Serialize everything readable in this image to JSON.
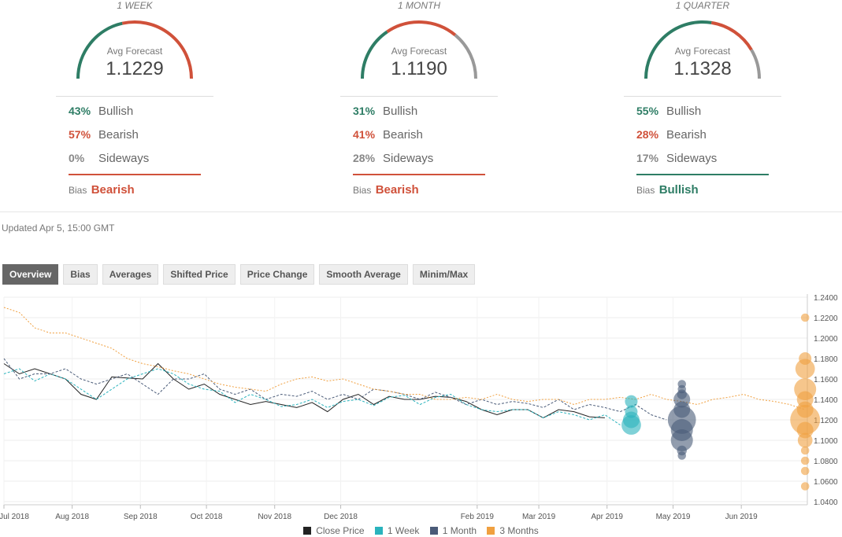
{
  "panels": [
    {
      "title": "1 WEEK",
      "avg_label": "Avg Forecast",
      "avg_value": "1.1229",
      "gauge": {
        "bullish": 0.43,
        "bearish": 0.57,
        "sideways": 0.0
      },
      "rows": [
        {
          "pct": "43%",
          "label": "Bullish",
          "color": "#2e7d65"
        },
        {
          "pct": "57%",
          "label": "Bearish",
          "color": "#d0513a"
        },
        {
          "pct": "0%",
          "label": "Sideways",
          "color": "#888888"
        }
      ],
      "bias_label": "Bias",
      "bias_value": "Bearish",
      "bias_color": "#d0513a"
    },
    {
      "title": "1 MONTH",
      "avg_label": "Avg Forecast",
      "avg_value": "1.1190",
      "gauge": {
        "bullish": 0.31,
        "bearish": 0.41,
        "sideways": 0.28
      },
      "rows": [
        {
          "pct": "31%",
          "label": "Bullish",
          "color": "#2e7d65"
        },
        {
          "pct": "41%",
          "label": "Bearish",
          "color": "#d0513a"
        },
        {
          "pct": "28%",
          "label": "Sideways",
          "color": "#888888"
        }
      ],
      "bias_label": "Bias",
      "bias_value": "Bearish",
      "bias_color": "#d0513a"
    },
    {
      "title": "1 QUARTER",
      "avg_label": "Avg Forecast",
      "avg_value": "1.1328",
      "gauge": {
        "bullish": 0.55,
        "bearish": 0.28,
        "sideways": 0.17
      },
      "rows": [
        {
          "pct": "55%",
          "label": "Bullish",
          "color": "#2e7d65"
        },
        {
          "pct": "28%",
          "label": "Bearish",
          "color": "#d0513a"
        },
        {
          "pct": "17%",
          "label": "Sideways",
          "color": "#888888"
        }
      ],
      "bias_label": "Bias",
      "bias_value": "Bullish",
      "bias_color": "#2e7d65"
    }
  ],
  "updated": "Updated Apr 5, 15:00 GMT",
  "tabs": [
    "Overview",
    "Bias",
    "Averages",
    "Shifted Price",
    "Price Change",
    "Smooth Average",
    "Minim/Max"
  ],
  "active_tab": "Overview",
  "colors": {
    "bullish": "#2e7d65",
    "bearish": "#d0513a",
    "sideways": "#999999",
    "close": "#222222",
    "week": "#2ab3bd",
    "month": "#4a5b78",
    "quarter": "#f0a040"
  },
  "chart_data": {
    "type": "line",
    "x_tick_labels": [
      "Jul 2018",
      "Aug 2018",
      "Sep 2018",
      "Oct 2018",
      "Nov 2018",
      "Dec 2018",
      "Feb 2019",
      "Mar 2019",
      "Apr 2019",
      "May 2019",
      "Jun 2019"
    ],
    "y_tick_labels": [
      "1.2400",
      "1.2200",
      "1.2000",
      "1.1800",
      "1.1600",
      "1.1400",
      "1.1200",
      "1.1000",
      "1.0800",
      "1.0600",
      "1.0400"
    ],
    "ylim": [
      1.04,
      1.24
    ],
    "grid": true,
    "legend": {
      "position": "bottom",
      "items": [
        {
          "name": "Close Price",
          "color": "#222222"
        },
        {
          "name": "1 Week",
          "color": "#2ab3bd"
        },
        {
          "name": "1 Month",
          "color": "#4a5b78"
        },
        {
          "name": "3 Months",
          "color": "#f0a040"
        }
      ]
    },
    "series": [
      {
        "name": "Close Price",
        "style": "solid",
        "color": "#222222",
        "x": [
          "2018-07-01",
          "2018-07-08",
          "2018-07-15",
          "2018-07-22",
          "2018-07-29",
          "2018-08-05",
          "2018-08-12",
          "2018-08-19",
          "2018-08-26",
          "2018-09-02",
          "2018-09-09",
          "2018-09-16",
          "2018-09-23",
          "2018-09-30",
          "2018-10-07",
          "2018-10-14",
          "2018-10-21",
          "2018-10-28",
          "2018-11-04",
          "2018-11-11",
          "2018-11-18",
          "2018-11-25",
          "2018-12-02",
          "2018-12-09",
          "2018-12-16",
          "2018-12-23",
          "2018-12-30",
          "2019-01-06",
          "2019-01-13",
          "2019-01-20",
          "2019-01-27",
          "2019-02-03",
          "2019-02-10",
          "2019-02-17",
          "2019-02-24",
          "2019-03-03",
          "2019-03-10",
          "2019-03-17",
          "2019-03-24",
          "2019-03-31"
        ],
        "y": [
          1.175,
          1.165,
          1.17,
          1.165,
          1.16,
          1.145,
          1.14,
          1.162,
          1.161,
          1.16,
          1.175,
          1.16,
          1.15,
          1.155,
          1.145,
          1.14,
          1.135,
          1.138,
          1.135,
          1.132,
          1.137,
          1.128,
          1.14,
          1.145,
          1.135,
          1.143,
          1.14,
          1.14,
          1.143,
          1.142,
          1.138,
          1.13,
          1.125,
          1.13,
          1.13,
          1.122,
          1.13,
          1.128,
          1.123,
          1.122
        ]
      },
      {
        "name": "1 Week",
        "style": "dashed",
        "color": "#2ab3bd",
        "x": [
          "2018-07-01",
          "2018-07-08",
          "2018-07-15",
          "2018-07-22",
          "2018-07-29",
          "2018-08-05",
          "2018-08-12",
          "2018-08-19",
          "2018-08-26",
          "2018-09-02",
          "2018-09-09",
          "2018-09-16",
          "2018-09-23",
          "2018-09-30",
          "2018-10-07",
          "2018-10-14",
          "2018-10-21",
          "2018-10-28",
          "2018-11-04",
          "2018-11-11",
          "2018-11-18",
          "2018-11-25",
          "2018-12-02",
          "2018-12-09",
          "2018-12-16",
          "2018-12-23",
          "2018-12-30",
          "2019-01-06",
          "2019-01-13",
          "2019-01-20",
          "2019-01-27",
          "2019-02-03",
          "2019-02-10",
          "2019-02-17",
          "2019-02-24",
          "2019-03-03",
          "2019-03-10",
          "2019-03-17",
          "2019-03-24",
          "2019-03-31",
          "2019-04-07"
        ],
        "y": [
          1.165,
          1.17,
          1.158,
          1.165,
          1.16,
          1.15,
          1.14,
          1.15,
          1.16,
          1.165,
          1.17,
          1.165,
          1.155,
          1.15,
          1.148,
          1.137,
          1.145,
          1.14,
          1.133,
          1.135,
          1.14,
          1.132,
          1.138,
          1.14,
          1.134,
          1.142,
          1.144,
          1.135,
          1.142,
          1.145,
          1.135,
          1.13,
          1.128,
          1.13,
          1.13,
          1.122,
          1.128,
          1.125,
          1.12,
          1.125,
          1.115
        ]
      },
      {
        "name": "1 Month",
        "style": "dashed",
        "color": "#4a5b78",
        "x": [
          "2018-07-01",
          "2018-07-08",
          "2018-07-15",
          "2018-07-22",
          "2018-07-29",
          "2018-08-05",
          "2018-08-12",
          "2018-08-19",
          "2018-08-26",
          "2018-09-02",
          "2018-09-09",
          "2018-09-16",
          "2018-09-23",
          "2018-09-30",
          "2018-10-07",
          "2018-10-14",
          "2018-10-21",
          "2018-10-28",
          "2018-11-04",
          "2018-11-11",
          "2018-11-18",
          "2018-11-25",
          "2018-12-02",
          "2018-12-09",
          "2018-12-16",
          "2018-12-23",
          "2018-12-30",
          "2019-01-06",
          "2019-01-13",
          "2019-01-20",
          "2019-01-27",
          "2019-02-03",
          "2019-02-10",
          "2019-02-17",
          "2019-02-24",
          "2019-03-03",
          "2019-03-10",
          "2019-03-17",
          "2019-03-24",
          "2019-03-31",
          "2019-04-07",
          "2019-04-14",
          "2019-04-21",
          "2019-04-28"
        ],
        "y": [
          1.18,
          1.16,
          1.165,
          1.165,
          1.17,
          1.16,
          1.155,
          1.16,
          1.165,
          1.155,
          1.145,
          1.16,
          1.16,
          1.165,
          1.15,
          1.145,
          1.15,
          1.14,
          1.145,
          1.143,
          1.148,
          1.14,
          1.145,
          1.14,
          1.15,
          1.148,
          1.145,
          1.14,
          1.147,
          1.142,
          1.135,
          1.14,
          1.135,
          1.138,
          1.136,
          1.132,
          1.14,
          1.13,
          1.135,
          1.132,
          1.128,
          1.135,
          1.125,
          1.12
        ]
      },
      {
        "name": "3 Months",
        "style": "dotted",
        "color": "#f0a040",
        "x": [
          "2018-07-01",
          "2018-07-08",
          "2018-07-15",
          "2018-07-22",
          "2018-07-29",
          "2018-08-05",
          "2018-08-12",
          "2018-08-19",
          "2018-08-26",
          "2018-09-02",
          "2018-09-09",
          "2018-09-16",
          "2018-09-23",
          "2018-09-30",
          "2018-10-07",
          "2018-10-14",
          "2018-10-21",
          "2018-10-28",
          "2018-11-04",
          "2018-11-11",
          "2018-11-18",
          "2018-11-25",
          "2018-12-02",
          "2018-12-09",
          "2018-12-16",
          "2018-12-23",
          "2018-12-30",
          "2019-01-06",
          "2019-01-13",
          "2019-01-20",
          "2019-01-27",
          "2019-02-03",
          "2019-02-10",
          "2019-02-17",
          "2019-02-24",
          "2019-03-03",
          "2019-03-10",
          "2019-03-17",
          "2019-03-24",
          "2019-03-31",
          "2019-04-07",
          "2019-04-14",
          "2019-04-21",
          "2019-04-28",
          "2019-05-05",
          "2019-05-12",
          "2019-05-19",
          "2019-05-26",
          "2019-06-02",
          "2019-06-09",
          "2019-06-16",
          "2019-06-23",
          "2019-06-30"
        ],
        "y": [
          1.23,
          1.225,
          1.21,
          1.205,
          1.205,
          1.2,
          1.195,
          1.19,
          1.18,
          1.175,
          1.172,
          1.168,
          1.165,
          1.16,
          1.155,
          1.152,
          1.15,
          1.148,
          1.155,
          1.16,
          1.162,
          1.158,
          1.16,
          1.155,
          1.15,
          1.148,
          1.145,
          1.145,
          1.14,
          1.14,
          1.142,
          1.14,
          1.145,
          1.14,
          1.138,
          1.14,
          1.14,
          1.135,
          1.14,
          1.14,
          1.142,
          1.14,
          1.145,
          1.14,
          1.138,
          1.135,
          1.14,
          1.142,
          1.145,
          1.14,
          1.138,
          1.135,
          1.13
        ]
      }
    ],
    "forecast_points": [
      {
        "series": "1 Week",
        "x": "2019-04-12",
        "y": 1.138,
        "weight": 1
      },
      {
        "series": "1 Week",
        "x": "2019-04-12",
        "y": 1.128,
        "weight": 1
      },
      {
        "series": "1 Week",
        "x": "2019-04-12",
        "y": 1.12,
        "weight": 2
      },
      {
        "series": "1 Week",
        "x": "2019-04-12",
        "y": 1.115,
        "weight": 3
      },
      {
        "series": "1 Month",
        "x": "2019-05-05",
        "y": 1.155,
        "weight": 0.3
      },
      {
        "series": "1 Month",
        "x": "2019-05-05",
        "y": 1.15,
        "weight": 0.3
      },
      {
        "series": "1 Month",
        "x": "2019-05-05",
        "y": 1.145,
        "weight": 0.5
      },
      {
        "series": "1 Month",
        "x": "2019-05-05",
        "y": 1.14,
        "weight": 2
      },
      {
        "series": "1 Month",
        "x": "2019-05-05",
        "y": 1.13,
        "weight": 2
      },
      {
        "series": "1 Month",
        "x": "2019-05-05",
        "y": 1.12,
        "weight": 7
      },
      {
        "series": "1 Month",
        "x": "2019-05-05",
        "y": 1.11,
        "weight": 4
      },
      {
        "series": "1 Month",
        "x": "2019-05-05",
        "y": 1.1,
        "weight": 4
      },
      {
        "series": "1 Month",
        "x": "2019-05-05",
        "y": 1.09,
        "weight": 0.5
      },
      {
        "series": "1 Month",
        "x": "2019-05-05",
        "y": 1.085,
        "weight": 0.3
      },
      {
        "series": "3 Months",
        "x": "2019-06-30",
        "y": 1.22,
        "weight": 0.3
      },
      {
        "series": "3 Months",
        "x": "2019-06-30",
        "y": 1.18,
        "weight": 1
      },
      {
        "series": "3 Months",
        "x": "2019-06-30",
        "y": 1.17,
        "weight": 3
      },
      {
        "series": "3 Months",
        "x": "2019-06-30",
        "y": 1.15,
        "weight": 4
      },
      {
        "series": "3 Months",
        "x": "2019-06-30",
        "y": 1.14,
        "weight": 2
      },
      {
        "series": "3 Months",
        "x": "2019-06-30",
        "y": 1.13,
        "weight": 2
      },
      {
        "series": "3 Months",
        "x": "2019-06-30",
        "y": 1.12,
        "weight": 8
      },
      {
        "series": "3 Months",
        "x": "2019-06-30",
        "y": 1.11,
        "weight": 2
      },
      {
        "series": "3 Months",
        "x": "2019-06-30",
        "y": 1.1,
        "weight": 1.5
      },
      {
        "series": "3 Months",
        "x": "2019-06-30",
        "y": 1.09,
        "weight": 0.3
      },
      {
        "series": "3 Months",
        "x": "2019-06-30",
        "y": 1.08,
        "weight": 0.3
      },
      {
        "series": "3 Months",
        "x": "2019-06-30",
        "y": 1.07,
        "weight": 0.3
      },
      {
        "series": "3 Months",
        "x": "2019-06-30",
        "y": 1.055,
        "weight": 0.3
      }
    ]
  }
}
